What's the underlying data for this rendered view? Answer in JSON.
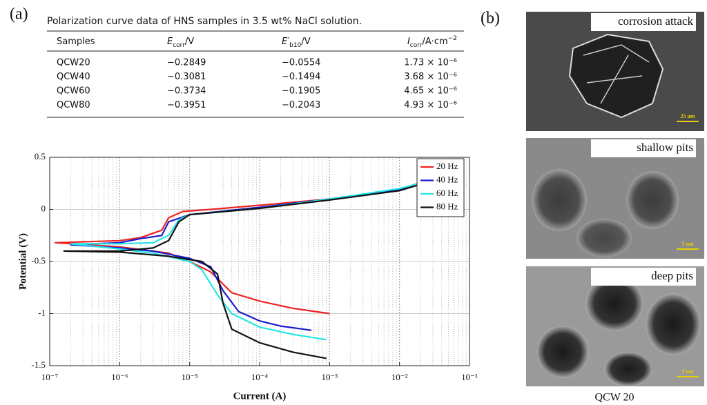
{
  "panel_a": "(a)",
  "panel_b": "(b)",
  "table": {
    "caption": "Polarization curve data of HNS samples in 3.5 wt% NaCl solution.",
    "header": [
      [
        "Samples"
      ],
      [
        "E",
        "corr",
        "/V"
      ],
      [
        "E′",
        "b10",
        "/V"
      ],
      [
        "I",
        "corr",
        "/A·cm",
        "−2"
      ]
    ],
    "rows": [
      [
        "QCW20",
        "−0.2849",
        "−0.0554",
        "1.73 × 10⁻⁶"
      ],
      [
        "QCW40",
        "−0.3081",
        "−0.1494",
        "3.68 × 10⁻⁶"
      ],
      [
        "QCW60",
        "−0.3734",
        "−0.1905",
        "4.65 × 10⁻⁶"
      ],
      [
        "QCW80",
        "−0.3951",
        "−0.2043",
        "4.93 × 10⁻⁶"
      ]
    ]
  },
  "chart_data": {
    "type": "line",
    "x_label": "Current (A)",
    "y_label": "Potential (V)",
    "xscale": "log",
    "xlim": [
      1e-07,
      0.1
    ],
    "ylim": [
      -1.5,
      0.5
    ],
    "xticks": [
      {
        "value": 1e-07,
        "label": "10⁻⁷"
      },
      {
        "value": 1e-06,
        "label": "10⁻⁶"
      },
      {
        "value": 1e-05,
        "label": "10⁻⁵"
      },
      {
        "value": 0.0001,
        "label": "10⁻⁴"
      },
      {
        "value": 0.001,
        "label": "10⁻³"
      },
      {
        "value": 0.01,
        "label": "10⁻²"
      },
      {
        "value": 0.1,
        "label": "10⁻¹"
      }
    ],
    "yticks": [
      -1.5,
      -1,
      -0.5,
      0,
      0.5
    ],
    "grid": true,
    "minor_grid": true,
    "legend": "upper right",
    "series": [
      {
        "name": "20 Hz",
        "color": "#ee2222",
        "x": [
          0.001,
          0.0003,
          0.0001,
          4e-05,
          2e-05,
          1e-05,
          5e-06,
          1e-06,
          1.2e-07,
          1e-06,
          2e-06,
          4e-06,
          5e-06,
          8e-06,
          2e-05,
          0.0001,
          0.001,
          0.005,
          0.015,
          0.02
        ],
        "values": [
          -1.0,
          -0.95,
          -0.88,
          -0.8,
          -0.6,
          -0.5,
          -0.42,
          -0.36,
          -0.32,
          -0.3,
          -0.27,
          -0.2,
          -0.08,
          -0.02,
          0,
          0.04,
          0.1,
          0.16,
          0.22,
          0.25
        ]
      },
      {
        "name": "40 Hz",
        "color": "#1a1acc",
        "x": [
          0.00055,
          0.0002,
          0.0001,
          5e-05,
          3e-05,
          2e-05,
          1e-05,
          3e-06,
          1e-06,
          2e-07,
          1e-06,
          2e-06,
          4e-06,
          5e-06,
          1e-05,
          0.0001,
          0.001,
          0.01,
          0.025
        ],
        "values": [
          -1.16,
          -1.12,
          -1.07,
          -0.98,
          -0.78,
          -0.55,
          -0.47,
          -0.4,
          -0.37,
          -0.34,
          -0.32,
          -0.28,
          -0.25,
          -0.12,
          -0.05,
          0.02,
          0.1,
          0.19,
          0.28
        ]
      },
      {
        "name": "60 Hz",
        "color": "#22e6e6",
        "x": [
          0.0009,
          0.0003,
          0.0001,
          4e-05,
          2.5e-05,
          1.5e-05,
          1e-05,
          3e-06,
          1e-06,
          2e-07,
          1e-06,
          3e-06,
          5e-06,
          7e-06,
          1e-05,
          0.0001,
          0.001,
          0.01,
          0.025
        ],
        "values": [
          -1.25,
          -1.2,
          -1.13,
          -1.0,
          -0.82,
          -0.58,
          -0.5,
          -0.42,
          -0.38,
          -0.33,
          -0.33,
          -0.32,
          -0.25,
          -0.1,
          -0.05,
          0.01,
          0.1,
          0.2,
          0.27
        ]
      },
      {
        "name": "80 Hz",
        "color": "#111111",
        "x": [
          0.0009,
          0.0003,
          0.0001,
          4e-05,
          3e-05,
          2.5e-05,
          1.5e-05,
          5e-06,
          1e-06,
          1.6e-07,
          1e-06,
          3e-06,
          5e-06,
          7e-06,
          1e-05,
          0.0001,
          0.001,
          0.01,
          0.025
        ],
        "values": [
          -1.43,
          -1.37,
          -1.28,
          -1.15,
          -0.9,
          -0.62,
          -0.5,
          -0.45,
          -0.41,
          -0.4,
          -0.4,
          -0.37,
          -0.3,
          -0.12,
          -0.05,
          0.01,
          0.09,
          0.18,
          0.26
        ]
      }
    ]
  },
  "micrographs": [
    {
      "label": "corrosion attack",
      "scale": "25 um"
    },
    {
      "label": "shallow pits",
      "scale": "5 um"
    },
    {
      "label": "deep pits",
      "scale": "5 um"
    }
  ],
  "micrograph_caption": "QCW 20"
}
